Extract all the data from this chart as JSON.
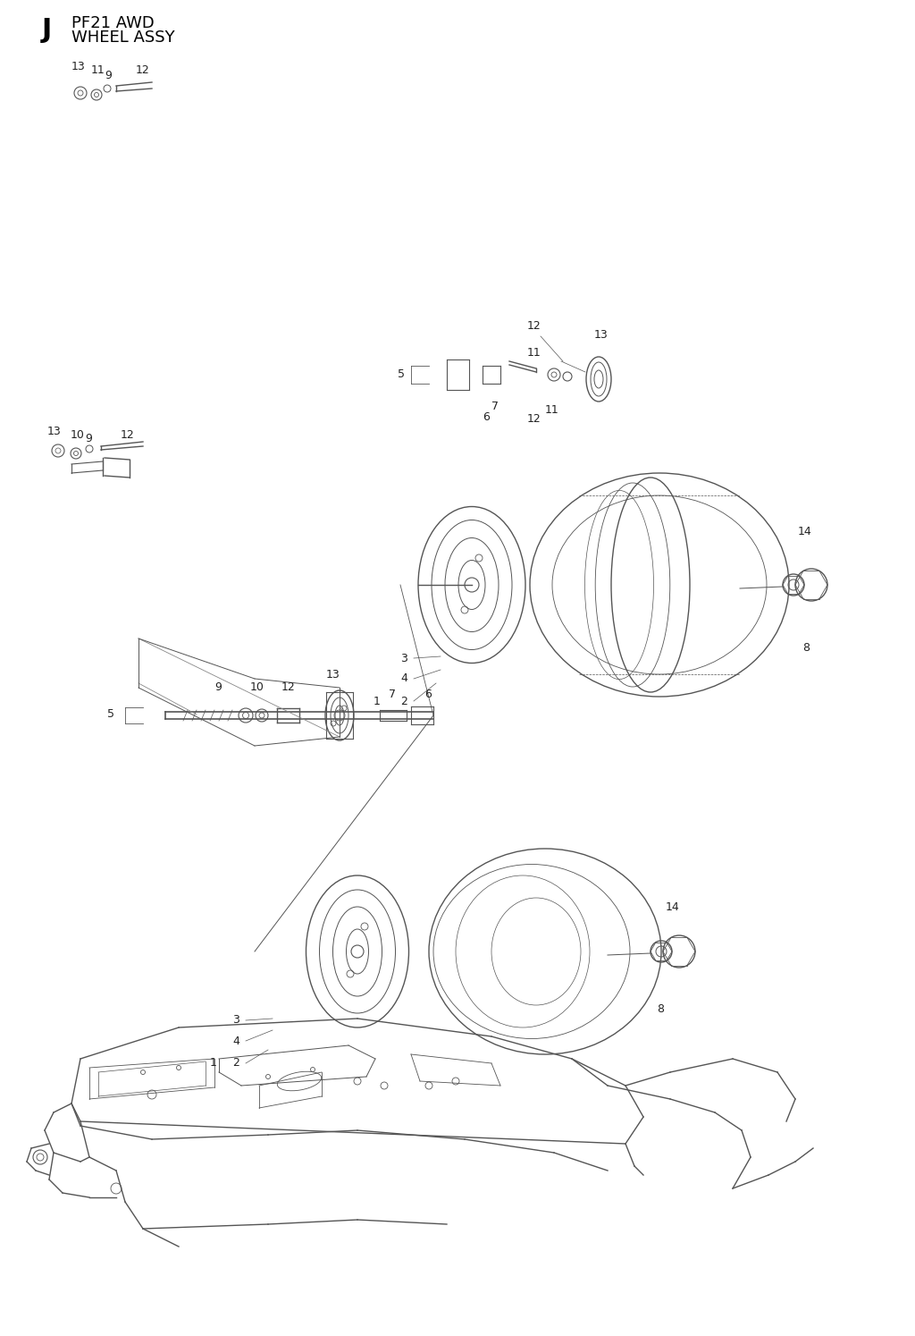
{
  "title_letter": "J",
  "title_line1": "PF21 AWD",
  "title_line2": "WHEEL ASSY",
  "bg_color": "#ffffff",
  "line_color": "#555555",
  "label_color": "#222222",
  "font_size_title": 13,
  "font_size_label": 10,
  "font_size_letter": 22
}
